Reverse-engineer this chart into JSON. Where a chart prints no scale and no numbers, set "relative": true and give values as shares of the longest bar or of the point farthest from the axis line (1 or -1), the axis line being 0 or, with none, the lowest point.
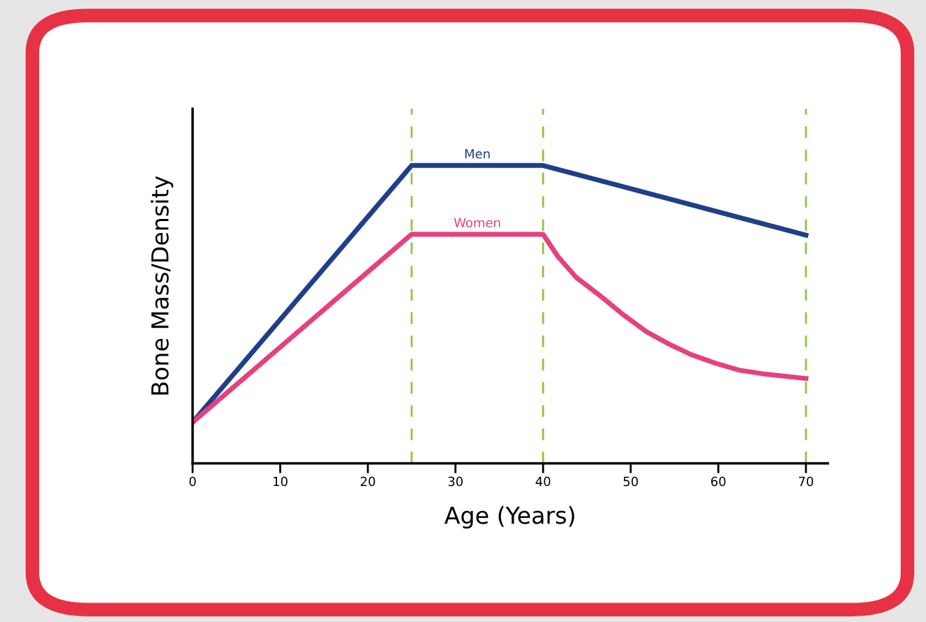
{
  "chart_data": {
    "type": "line",
    "relative": true,
    "xlabel": "Age (Years)",
    "ylabel": "Bone Mass/Density",
    "xlim": [
      0,
      72.5
    ],
    "xticks": [
      0,
      10,
      20,
      30,
      40,
      50,
      60,
      70
    ],
    "grid": false,
    "legend": false,
    "marker": "none",
    "line_style": "solid",
    "tick_labels": "x",
    "series": [
      {
        "name": "Men",
        "color": "#1f3f88",
        "x": [
          0,
          25,
          40,
          70
        ],
        "values": [
          0.138,
          1.0,
          1.0,
          0.766
        ]
      },
      {
        "name": "Women",
        "color": "#e6407f",
        "x": [
          0,
          25,
          40,
          41.7,
          43.8,
          46.5,
          49.1,
          51.8,
          54.4,
          57.0,
          59.7,
          62.4,
          65.0,
          70
        ],
        "values": [
          0.138,
          0.769,
          0.769,
          0.694,
          0.624,
          0.563,
          0.5,
          0.442,
          0.4,
          0.364,
          0.336,
          0.313,
          0.301,
          0.285
        ]
      }
    ],
    "ref_lines": [
      {
        "axis": "x",
        "value": 25,
        "color": "#8dc63f",
        "line_style": "dashed"
      },
      {
        "axis": "x",
        "value": 40,
        "color": "#8dc63f",
        "line_style": "dashed"
      },
      {
        "axis": "x",
        "value": 70,
        "color": "#8dc63f",
        "line_style": "dashed"
      }
    ]
  }
}
